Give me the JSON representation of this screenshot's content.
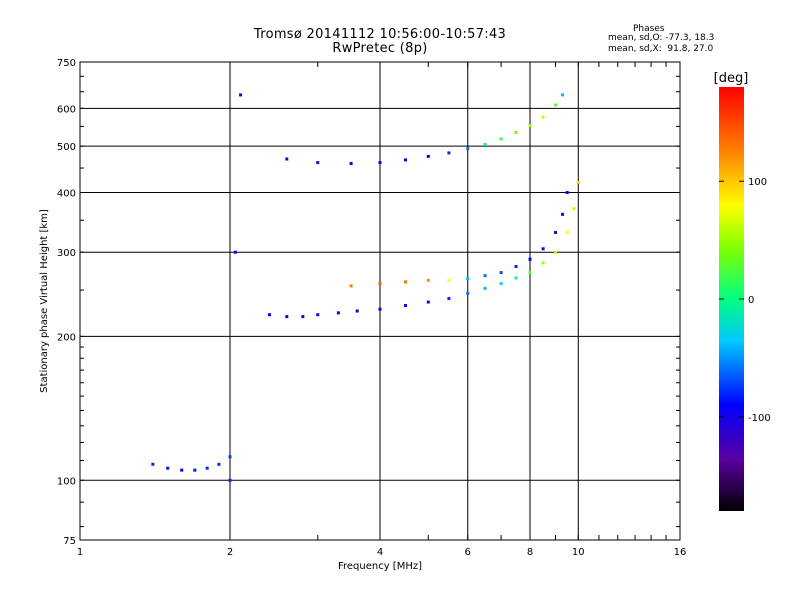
{
  "chart_data": {
    "type": "scatter",
    "title": "Tromsø 20141112 10:56:00-10:57:43",
    "subtitle": "RwPretec (8p)",
    "xlabel": "Frequency [MHz]",
    "ylabel": "Stationary phase Virtual Height [km]",
    "x_scale": "log",
    "y_scale": "log",
    "xlim": [
      1,
      16
    ],
    "ylim": [
      75,
      750
    ],
    "x_ticks": [
      1,
      2,
      4,
      6,
      8,
      10,
      16
    ],
    "x_tick_labels": [
      "1",
      "2",
      "4",
      "6",
      "8",
      "10",
      "16"
    ],
    "y_ticks": [
      75,
      100,
      200,
      300,
      400,
      500,
      600,
      750
    ],
    "y_tick_labels": [
      "75",
      "100",
      "200",
      "300",
      "400",
      "500",
      "600",
      "750"
    ],
    "grid": true,
    "colorbar": {
      "label": "[deg]",
      "range": [
        -180,
        180
      ],
      "ticks": [
        100,
        0,
        -100
      ],
      "tick_labels": [
        "100",
        "0",
        "-100"
      ],
      "colormap": "rainbow"
    },
    "stats": {
      "heading": "Phases",
      "line1": "mean, sd,O: -77.3, 18.3",
      "line2": "mean, sd,X:  91.8, 27.0"
    },
    "traces": [
      {
        "desc": "O-mode F-layer trace",
        "x": [
          2.4,
          2.6,
          2.8,
          3.0,
          3.3,
          3.6,
          4.0,
          4.5,
          5.0,
          5.5,
          6.0,
          6.5,
          7.0,
          7.5,
          8.0,
          8.5,
          9.0,
          9.5,
          9.8,
          10.0
        ],
        "y": [
          222,
          220,
          220,
          222,
          224,
          226,
          228,
          232,
          236,
          240,
          246,
          252,
          258,
          265,
          272,
          285,
          300,
          330,
          370,
          420
        ],
        "phase": [
          -95,
          -100,
          -105,
          -105,
          -100,
          -100,
          -95,
          -90,
          -85,
          -80,
          -60,
          -40,
          -20,
          0,
          30,
          50,
          60,
          80,
          90,
          100
        ]
      },
      {
        "desc": "X-mode F-layer trace",
        "x": [
          3.5,
          4.0,
          4.5,
          5.0,
          5.5,
          6.0,
          6.5,
          7.0,
          7.5,
          8.0,
          8.5,
          9.0,
          9.3,
          9.5
        ],
        "y": [
          255,
          258,
          260,
          262,
          262,
          264,
          268,
          272,
          280,
          290,
          305,
          330,
          360,
          400
        ],
        "phase": [
          130,
          140,
          130,
          120,
          80,
          -40,
          -60,
          -70,
          -80,
          -90,
          -100,
          -110,
          -110,
          -100
        ]
      },
      {
        "desc": "Second-hop trace",
        "x": [
          2.6,
          3.0,
          3.5,
          4.0,
          4.5,
          5.0,
          5.5,
          6.0,
          6.5,
          7.0,
          7.5,
          8.0,
          8.5,
          9.0,
          9.3
        ],
        "y": [
          470,
          462,
          460,
          462,
          468,
          476,
          484,
          494,
          504,
          518,
          534,
          552,
          575,
          610,
          640
        ],
        "phase": [
          -110,
          -105,
          -100,
          -100,
          -95,
          -90,
          -80,
          -60,
          -20,
          20,
          40,
          50,
          60,
          30,
          -40
        ]
      },
      {
        "desc": "E-layer trace",
        "x": [
          1.4,
          1.5,
          1.6,
          1.7,
          1.8,
          1.9,
          2.0
        ],
        "y": [
          108,
          106,
          105,
          105,
          106,
          108,
          112
        ],
        "phase": [
          -80,
          -85,
          -90,
          -85,
          -80,
          -80,
          -75
        ]
      },
      {
        "desc": "Spread echoes near 2 MHz",
        "x": [
          2.0,
          2.05,
          2.1
        ],
        "y": [
          100,
          300,
          640
        ],
        "phase": [
          -80,
          -90,
          -100
        ]
      }
    ]
  }
}
